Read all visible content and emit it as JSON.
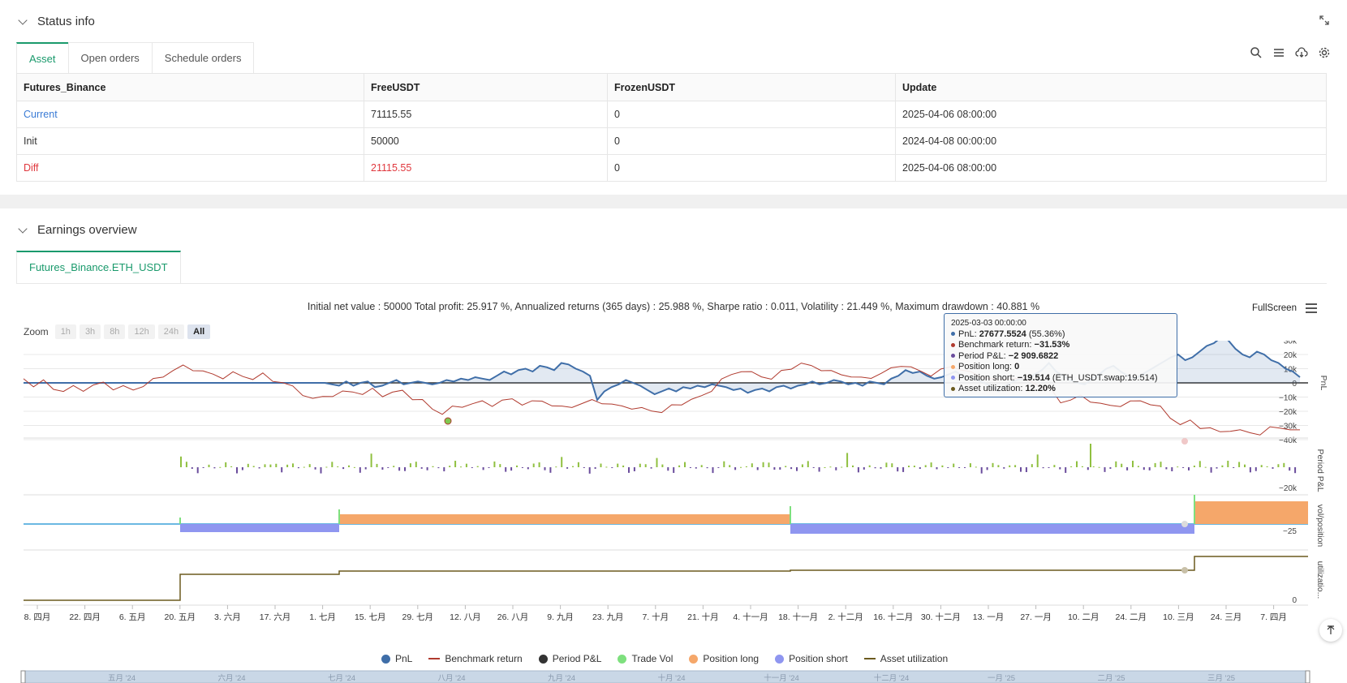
{
  "status": {
    "title": "Status info",
    "tabs": [
      "Asset",
      "Open orders",
      "Schedule orders"
    ],
    "table": {
      "headers": [
        "Futures_Binance",
        "FreeUSDT",
        "FrozenUSDT",
        "Update"
      ],
      "rows": [
        {
          "label": "Current",
          "free": "71115.55",
          "frozen": "0",
          "update": "2025-04-06 08:00:00"
        },
        {
          "label": "Init",
          "free": "50000",
          "frozen": "0",
          "update": "2024-04-08 00:00:00"
        },
        {
          "label": "Diff",
          "free": "21115.55",
          "frozen": "0",
          "update": "2025-04-06 08:00:00"
        }
      ]
    }
  },
  "earnings": {
    "title": "Earnings overview",
    "tab": "Futures_Binance.ETH_USDT",
    "summary": "Initial net value : 50000 Total profit: 25.917 %, Annualized returns (365 days) : 25.988 %, Sharpe ratio : 0.011, Volatility : 21.449 %, Maximum drawdown : 40.881 %",
    "fullscreen": "FullScreen",
    "zoom_label": "Zoom",
    "zoom_options": [
      "1h",
      "3h",
      "8h",
      "12h",
      "24h",
      "All"
    ]
  },
  "tooltip": {
    "date": "2025-03-03 00:00:00",
    "pnl_label": "PnL: ",
    "pnl_value": "27677.5524",
    "pnl_pct": " (55.36%)",
    "bench_label": "Benchmark return: ",
    "bench_value": "−31.53%",
    "period_label": "Period P&L: ",
    "period_value": "−2 909.6822",
    "long_label": "Position long: ",
    "long_value": "0",
    "short_label": "Position short: ",
    "short_value": "−19.514",
    "short_extra": " (ETH_USDT.swap:19.514)",
    "util_label": "Asset utilization: ",
    "util_value": "12.20%"
  },
  "colors": {
    "pnl": "#3f6ea8",
    "benchmark": "#b03a2e",
    "period_pos": "#90c040",
    "period_neg": "#6a4c9c",
    "trade_vol": "#7ee07e",
    "position_long": "#f5a76a",
    "position_short": "#8f96f0",
    "utilization": "#6b5a1e"
  },
  "chart_data": {
    "type": "line",
    "title": "Initial net value : 50000 Total profit: 25.917 %, Annualized returns (365 days) : 25.988 %, Sharpe ratio : 0.011, Volatility : 21.449 %, Maximum drawdown : 40.881 %",
    "x_ticks": [
      "8. 四月",
      "22. 四月",
      "6. 五月",
      "20. 五月",
      "3. 六月",
      "17. 六月",
      "1. 七月",
      "15. 七月",
      "29. 七月",
      "12. 八月",
      "26. 八月",
      "9. 九月",
      "23. 九月",
      "7. 十月",
      "21. 十月",
      "4. 十一月",
      "18. 十一月",
      "2. 十二月",
      "16. 十二月",
      "30. 十二月",
      "13. 一月",
      "27. 一月",
      "10. 二月",
      "24. 二月",
      "10. 三月",
      "24. 三月",
      "7. 四月"
    ],
    "navigator_ticks": [
      "五月 '24",
      "六月 '24",
      "七月 '24",
      "八月 '24",
      "九月 '24",
      "十月 '24",
      "十一月 '24",
      "十二月 '24",
      "一月 '25",
      "二月 '25",
      "三月 '25"
    ],
    "pnl_axis": {
      "ticks": [
        "30k",
        "20k",
        "10k",
        "0",
        "−10k",
        "−20k",
        "−30k",
        "−40k"
      ],
      "range": [
        -40000,
        30000
      ]
    },
    "period_axis": {
      "label": "Period P&L",
      "ticks": [
        "−20k"
      ]
    },
    "position_axis": {
      "label": "vol/position",
      "ticks": [
        "−25"
      ]
    },
    "utilization_axis": {
      "label": "utilizatio...",
      "ticks": [
        "0"
      ]
    },
    "series": [
      {
        "name": "PnL",
        "values_k": [
          0,
          0,
          0,
          0,
          0,
          0,
          0,
          0,
          0,
          0,
          0,
          0,
          0,
          0,
          0,
          0,
          0,
          0,
          0,
          0,
          0,
          0,
          0,
          0,
          0,
          0,
          0,
          0,
          0,
          0,
          0,
          0,
          0,
          0,
          0,
          0,
          0,
          0,
          0,
          0,
          0,
          0,
          0,
          -1,
          -2,
          1,
          -2,
          0,
          1,
          -3,
          -2,
          0,
          2,
          -1,
          0,
          1,
          0,
          -1,
          0,
          2,
          1,
          3,
          2,
          4,
          3,
          2,
          5,
          8,
          6,
          9,
          10,
          8,
          12,
          11,
          9,
          14,
          13,
          10,
          8,
          5,
          -12,
          -6,
          -3,
          -1,
          2,
          0,
          -2,
          -5,
          -8,
          -6,
          -4,
          -6,
          -3,
          -4,
          -2,
          -3,
          -1,
          -2,
          -3,
          -5,
          -4,
          -7,
          -5,
          -4,
          -6,
          -3,
          -2,
          -4,
          -2,
          -1,
          1,
          -1,
          0,
          2,
          1,
          -1,
          0,
          -2,
          1,
          0,
          -1,
          3,
          5,
          9,
          7,
          8,
          5,
          3,
          4,
          6,
          8,
          5,
          4,
          2,
          0,
          -3,
          -6,
          -2,
          1,
          3,
          2,
          6,
          9,
          14,
          8,
          5,
          2,
          0,
          -1,
          3,
          6,
          10,
          12,
          8,
          5,
          3,
          6,
          9,
          12,
          15,
          18,
          20,
          16,
          18,
          22,
          26,
          28,
          32,
          30,
          24,
          20,
          18,
          22,
          20,
          16,
          14,
          10,
          8,
          4
        ],
        "note": "approximate shape, in thousands USDT"
      },
      {
        "name": "Benchmark return",
        "values_pct": [
          3,
          -2,
          1,
          -4,
          -6,
          -3,
          -5,
          -2,
          0,
          -4,
          -3,
          -5,
          -2,
          2,
          5,
          9,
          12,
          10,
          8,
          6,
          4,
          7,
          5,
          3,
          6,
          2,
          0,
          -3,
          -8,
          -12,
          -10,
          -9,
          -7,
          -6,
          -8,
          -5,
          -9,
          -7,
          -6,
          -11,
          -13,
          -19,
          -22,
          -18,
          -17,
          -15,
          -14,
          -16,
          -13,
          -12,
          -15,
          -14,
          -13,
          -16,
          -18,
          -17,
          -15,
          -13,
          -14,
          -16,
          -17,
          -18,
          -19,
          -20,
          -21,
          -17,
          -15,
          -12,
          -10,
          -5,
          2,
          6,
          9,
          7,
          5,
          3,
          8,
          11,
          14,
          12,
          10,
          8,
          6,
          5,
          3,
          4,
          7,
          10,
          13,
          11,
          8,
          6,
          9,
          12,
          10,
          7,
          5,
          3,
          2,
          4,
          3,
          1,
          -2,
          -5,
          -14,
          -12,
          -10,
          -13,
          -15,
          -17,
          -16,
          -14,
          -13,
          -15,
          -18,
          -25,
          -30,
          -28,
          -32,
          -33,
          -36,
          -34,
          -35,
          -36,
          -37,
          -33,
          -32,
          -34,
          -35
        ]
      },
      {
        "name": "Period P&L"
      },
      {
        "name": "Trade Vol"
      },
      {
        "name": "Position long"
      },
      {
        "name": "Position short"
      },
      {
        "name": "Asset utilization"
      }
    ]
  },
  "legend": [
    "PnL",
    "Benchmark return",
    "Period P&L",
    "Trade Vol",
    "Position long",
    "Position short",
    "Asset utilization"
  ]
}
